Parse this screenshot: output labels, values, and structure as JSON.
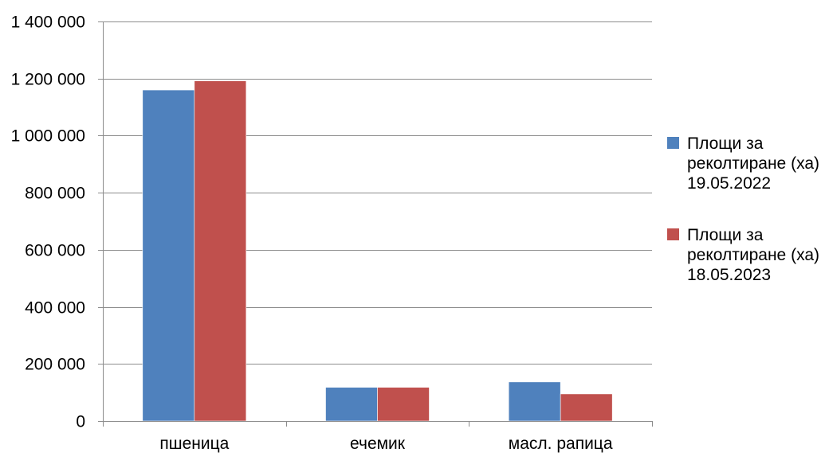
{
  "chart_data": {
    "type": "bar",
    "categories": [
      "пшеница",
      "ечемик",
      "масл. рапица"
    ],
    "series": [
      {
        "name": "Площи за реколтиране (ха) 19.05.2022",
        "name_lines": [
          "Площи за",
          "реколтиране (ха)",
          "19.05.2022"
        ],
        "values": [
          1160000,
          118000,
          137000
        ],
        "color": "#4F81BD"
      },
      {
        "name": "Площи за реколтиране (ха) 18.05.2023",
        "name_lines": [
          "Площи за",
          "реколтиране (ха)",
          "18.05.2023"
        ],
        "values": [
          1192000,
          118000,
          95000
        ],
        "color": "#C0504D"
      }
    ],
    "ylim": [
      0,
      1400000
    ],
    "yticks": [
      0,
      200000,
      400000,
      600000,
      800000,
      1000000,
      1200000,
      1400000
    ],
    "ytick_labels": [
      "0",
      "200 000",
      "400 000",
      "600 000",
      "800 000",
      "1 000 000",
      "1 200 000",
      "1 400 000"
    ],
    "grid": true,
    "legend_position": "right",
    "title": "",
    "xlabel": "",
    "ylabel": ""
  }
}
